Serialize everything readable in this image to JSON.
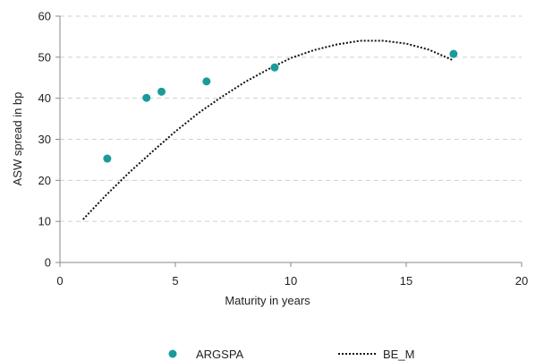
{
  "chart_data": {
    "type": "scatter",
    "title": "",
    "xlabel": "Maturity in years",
    "ylabel": "ASW spread in bp",
    "xlim": [
      0,
      20
    ],
    "ylim": [
      0,
      60
    ],
    "x_ticks": [
      "0",
      "5",
      "10",
      "15",
      "20"
    ],
    "y_ticks": [
      "0",
      "10",
      "20",
      "30",
      "40",
      "50",
      "60"
    ],
    "grid": "horizontal dashed",
    "legend_position": "bottom",
    "series": [
      {
        "name": "ARGSPA",
        "kind": "scatter",
        "color": "#1a9a9a",
        "points": [
          {
            "x": 2.05,
            "y": 25.3
          },
          {
            "x": 3.75,
            "y": 40.1
          },
          {
            "x": 4.4,
            "y": 41.6
          },
          {
            "x": 6.35,
            "y": 44.1
          },
          {
            "x": 9.3,
            "y": 47.5
          },
          {
            "x": 17.05,
            "y": 50.8
          }
        ]
      },
      {
        "name": "BE_M",
        "kind": "line",
        "style": "dotted",
        "color": "#111111",
        "points": [
          {
            "x": 1.0,
            "y": 10.5
          },
          {
            "x": 2.0,
            "y": 16.4
          },
          {
            "x": 3.0,
            "y": 21.9
          },
          {
            "x": 4.0,
            "y": 27.0
          },
          {
            "x": 5.0,
            "y": 31.9
          },
          {
            "x": 6.0,
            "y": 36.4
          },
          {
            "x": 7.0,
            "y": 40.3
          },
          {
            "x": 8.0,
            "y": 43.9
          },
          {
            "x": 9.0,
            "y": 47.0
          },
          {
            "x": 10.0,
            "y": 49.8
          },
          {
            "x": 11.0,
            "y": 51.7
          },
          {
            "x": 12.0,
            "y": 53.1
          },
          {
            "x": 13.0,
            "y": 54.0
          },
          {
            "x": 14.0,
            "y": 54.0
          },
          {
            "x": 15.0,
            "y": 53.3
          },
          {
            "x": 16.0,
            "y": 51.8
          },
          {
            "x": 17.0,
            "y": 49.3
          }
        ]
      }
    ]
  }
}
